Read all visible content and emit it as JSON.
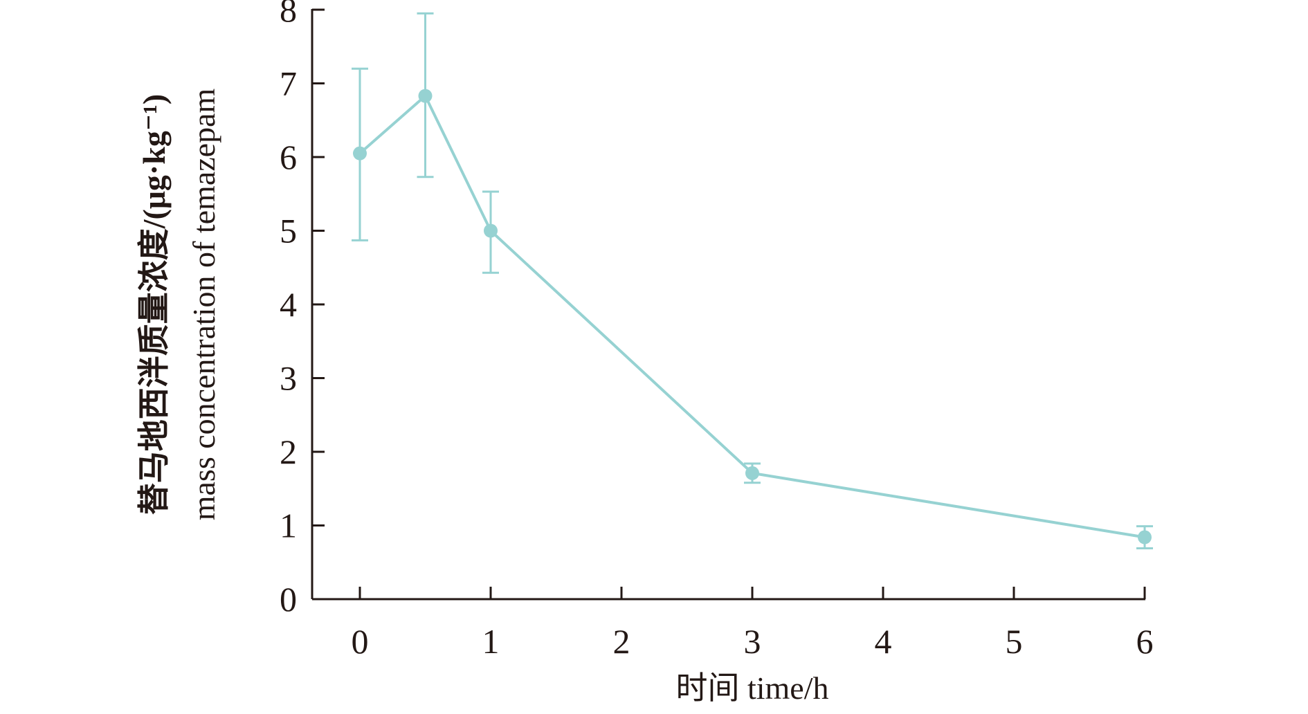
{
  "chart_data": {
    "type": "line",
    "title": "",
    "xlabel": "时间 time/h",
    "ylabel_cn": "替马地西泮质量浓度/(μg·kg⁻¹)",
    "ylabel_en": "mass concentration of temazepam",
    "xlim": [
      0,
      6
    ],
    "ylim": [
      0,
      8
    ],
    "xticks": [
      "0",
      "1",
      "2",
      "3",
      "4",
      "5",
      "6"
    ],
    "yticks": [
      "0",
      "1",
      "2",
      "3",
      "4",
      "5",
      "6",
      "7",
      "8"
    ],
    "grid": false,
    "series": [
      {
        "color": "#96d2d2",
        "x": [
          0,
          0.5,
          1,
          3,
          6
        ],
        "y": [
          6.05,
          6.83,
          5.0,
          1.71,
          0.84
        ],
        "error_low": [
          4.87,
          5.73,
          4.43,
          1.58,
          0.69
        ],
        "error_high": [
          7.2,
          7.95,
          5.53,
          1.84,
          0.99
        ]
      }
    ]
  }
}
